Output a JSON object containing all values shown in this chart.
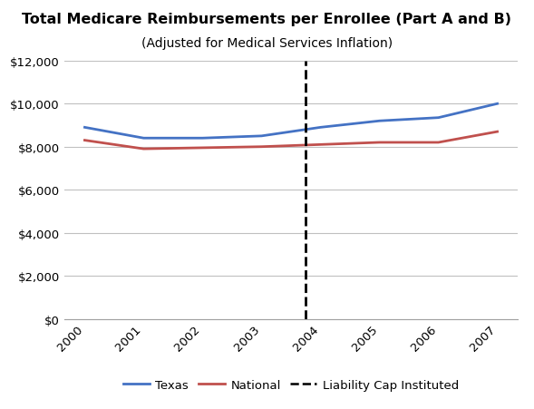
{
  "title": "Total Medicare Reimbursements per Enrollee (Part A and B)",
  "subtitle": "(Adjusted for Medical Services Inflation)",
  "years": [
    2000,
    2001,
    2002,
    2003,
    2004,
    2005,
    2006,
    2007
  ],
  "texas": [
    8900,
    8400,
    8400,
    8500,
    8900,
    9200,
    9350,
    10000
  ],
  "national": [
    8300,
    7900,
    7950,
    8000,
    8100,
    8200,
    8200,
    8700
  ],
  "liability_cap_x": 2003.75,
  "texas_color": "#4472C4",
  "national_color": "#C0504D",
  "vline_color": "#000000",
  "ylim": [
    0,
    12000
  ],
  "yticks": [
    0,
    2000,
    4000,
    6000,
    8000,
    10000,
    12000
  ],
  "xlim_left": 1999.65,
  "xlim_right": 2007.35,
  "background_color": "#ffffff",
  "grid_color": "#c0c0c0",
  "title_fontsize": 11.5,
  "subtitle_fontsize": 10,
  "tick_fontsize": 9.5,
  "legend_fontsize": 9.5
}
